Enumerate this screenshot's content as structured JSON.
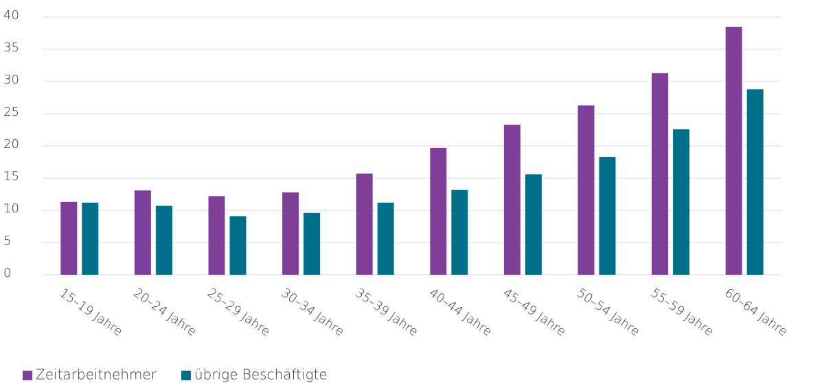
{
  "chart_data": {
    "type": "bar",
    "categories": [
      "15–19 Jahre",
      "20–24 Jahre",
      "25–29 Jahre",
      "30–34 Jahre",
      "35–39 Jahre",
      "40–44 Jahre",
      "45–49 Jahre",
      "50–54 Jahre",
      "55–59 Jahre",
      "60–64 Jahre"
    ],
    "series": [
      {
        "name": "Zeitarbeitnehmer",
        "color": "#7f3f98",
        "values": [
          11.3,
          13.1,
          12.2,
          12.8,
          15.7,
          19.7,
          23.3,
          26.3,
          31.3,
          38.5
        ]
      },
      {
        "name": "übrige Beschäftigte",
        "color": "#006f8a",
        "values": [
          11.2,
          10.7,
          9.1,
          9.6,
          11.2,
          13.2,
          15.6,
          18.3,
          22.6,
          28.8
        ]
      }
    ],
    "ylim": [
      0,
      40
    ],
    "yticks": [
      0,
      5,
      10,
      15,
      20,
      25,
      30,
      35,
      40
    ],
    "grid": true,
    "legend": "bottom-left"
  }
}
